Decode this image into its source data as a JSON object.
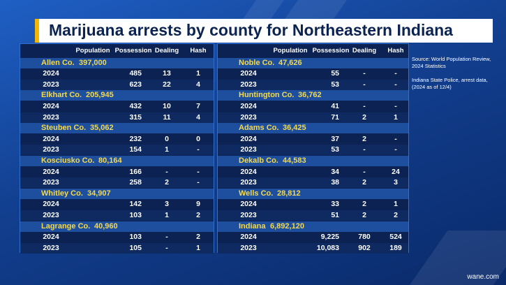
{
  "title": "Marijuana arrests by county for Northeastern Indiana",
  "left_table": {
    "header": [
      "Population",
      "Possession",
      "Dealing",
      "Hash"
    ],
    "groups": [
      {
        "county": "Allen Co.",
        "population": "397,000",
        "rows": [
          {
            "year": "2024",
            "possession": "485",
            "dealing": "13",
            "hash": "1"
          },
          {
            "year": "2023",
            "possession": "623",
            "dealing": "22",
            "hash": "4"
          }
        ]
      },
      {
        "county": "Elkhart Co.",
        "population": "205,945",
        "rows": [
          {
            "year": "2024",
            "possession": "432",
            "dealing": "10",
            "hash": "7"
          },
          {
            "year": "2023",
            "possession": "315",
            "dealing": "11",
            "hash": "4"
          }
        ]
      },
      {
        "county": "Steuben Co.",
        "population": "35,062",
        "rows": [
          {
            "year": "2024",
            "possession": "232",
            "dealing": "0",
            "hash": "0"
          },
          {
            "year": "2023",
            "possession": "154",
            "dealing": "1",
            "hash": "-"
          }
        ]
      },
      {
        "county": "Kosciusko Co.",
        "population": "80,164",
        "rows": [
          {
            "year": "2024",
            "possession": "166",
            "dealing": "-",
            "hash": "-"
          },
          {
            "year": "2023",
            "possession": "258",
            "dealing": "2",
            "hash": "-"
          }
        ]
      },
      {
        "county": "Whitley Co.",
        "population": "34,907",
        "rows": [
          {
            "year": "2024",
            "possession": "142",
            "dealing": "3",
            "hash": "9"
          },
          {
            "year": "2023",
            "possession": "103",
            "dealing": "1",
            "hash": "2"
          }
        ]
      },
      {
        "county": "Lagrange Co.",
        "population": "40,960",
        "rows": [
          {
            "year": "2024",
            "possession": "103",
            "dealing": "-",
            "hash": "2"
          },
          {
            "year": "2023",
            "possession": "105",
            "dealing": "-",
            "hash": "1"
          }
        ]
      }
    ]
  },
  "right_table": {
    "header": [
      "Population",
      "Possession",
      "Dealing",
      "Hash"
    ],
    "groups": [
      {
        "county": "Noble Co.",
        "population": "47,626",
        "rows": [
          {
            "year": "2024",
            "possession": "55",
            "dealing": "-",
            "hash": "-"
          },
          {
            "year": "2023",
            "possession": "53",
            "dealing": "-",
            "hash": "-"
          }
        ]
      },
      {
        "county": "Huntington Co.",
        "population": "36,762",
        "rows": [
          {
            "year": "2024",
            "possession": "41",
            "dealing": "-",
            "hash": "-"
          },
          {
            "year": "2023",
            "possession": "71",
            "dealing": "2",
            "hash": "1"
          }
        ]
      },
      {
        "county": "Adams Co.",
        "population": "36,425",
        "rows": [
          {
            "year": "2024",
            "possession": "37",
            "dealing": "2",
            "hash": "-"
          },
          {
            "year": "2023",
            "possession": "53",
            "dealing": "-",
            "hash": "-"
          }
        ]
      },
      {
        "county": "Dekalb Co.",
        "population": "44,583",
        "rows": [
          {
            "year": "2024",
            "possession": "34",
            "dealing": "-",
            "hash": "24"
          },
          {
            "year": "2023",
            "possession": "38",
            "dealing": "2",
            "hash": "3"
          }
        ]
      },
      {
        "county": "Wells Co.",
        "population": "28,812",
        "rows": [
          {
            "year": "2024",
            "possession": "33",
            "dealing": "2",
            "hash": "1"
          },
          {
            "year": "2023",
            "possession": "51",
            "dealing": "2",
            "hash": "2"
          }
        ]
      },
      {
        "county": "Indiana",
        "population": "6,892,120",
        "rows": [
          {
            "year": "2024",
            "possession": "9,225",
            "dealing": "780",
            "hash": "524"
          },
          {
            "year": "2023",
            "possession": "10,083",
            "dealing": "902",
            "hash": "189"
          }
        ]
      }
    ]
  },
  "notes": [
    "Source: World Population Review, 2024 Statistics",
    "Indiana State Police, arrest data, (2024 as of 12/4)"
  ],
  "watermark": "wane.com"
}
